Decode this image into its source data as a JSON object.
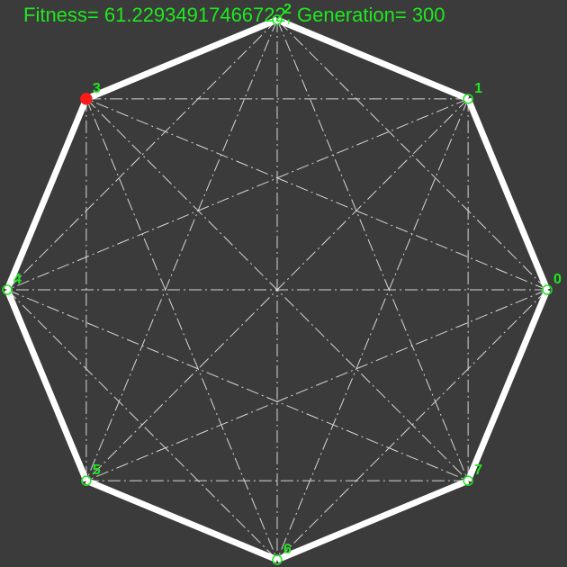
{
  "status": {
    "fitness_label": "Fitness= ",
    "fitness_value": "61.22934917466722",
    "separator": ", ",
    "generation_label": "Generation= ",
    "generation_value": "300"
  },
  "graph": {
    "nodes": [
      {
        "id": 0,
        "label": "0"
      },
      {
        "id": 1,
        "label": "1"
      },
      {
        "id": 2,
        "label": "2"
      },
      {
        "id": 3,
        "label": "3"
      },
      {
        "id": 4,
        "label": "4"
      },
      {
        "id": 5,
        "label": "5"
      },
      {
        "id": 6,
        "label": "6"
      },
      {
        "id": 7,
        "label": "7"
      }
    ],
    "tour": [
      0,
      1,
      2,
      3,
      4,
      5,
      6,
      7,
      0
    ],
    "start_node": 3
  },
  "colors": {
    "background": "#3b3b3b",
    "text": "#1fe81f",
    "tour_edge": "#ffffff",
    "dashed_edge": "#d6d6d6",
    "start_node": "#ff1a1a"
  }
}
